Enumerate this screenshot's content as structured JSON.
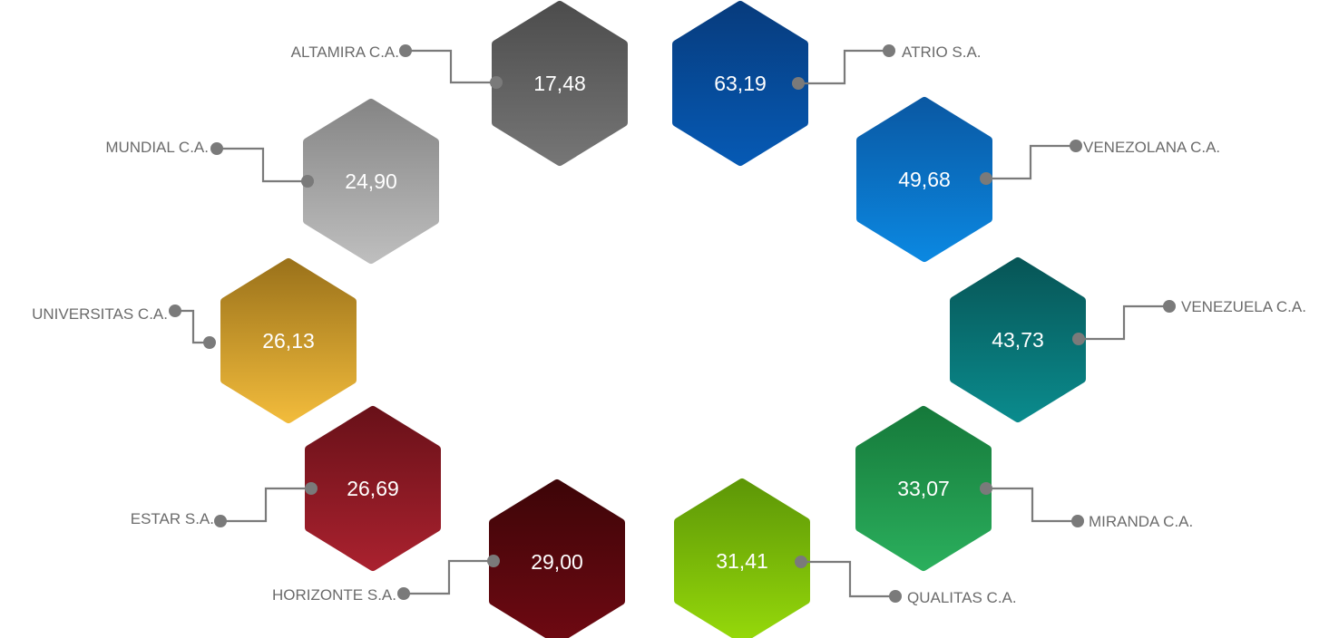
{
  "items": [
    {
      "company": "ALTAMIRA C.A.",
      "value": "17,48",
      "color_top": "#4d4d4d",
      "color_bottom": "#757575"
    },
    {
      "company": "MUNDIAL C.A.",
      "value": "24,90",
      "color_top": "#868686",
      "color_bottom": "#bdbdbd"
    },
    {
      "company": "UNIVERSITAS C.A.",
      "value": "26,13",
      "color_top": "#9c731b",
      "color_bottom": "#f0ba3b"
    },
    {
      "company": "ESTAR S.A.",
      "value": "26,69",
      "color_top": "#6a1119",
      "color_bottom": "#a8212e"
    },
    {
      "company": "HORIZONTE S.A.",
      "value": "29,00",
      "color_top": "#3e0508",
      "color_bottom": "#6e0912"
    },
    {
      "company": "ATRIO S.A.",
      "value": "63,19",
      "color_top": "#073c7e",
      "color_bottom": "#0659b3"
    },
    {
      "company": "VENEZOLANA C.A.",
      "value": "49,68",
      "color_top": "#0a59a4",
      "color_bottom": "#0b87e0"
    },
    {
      "company": "VENEZUELA C.A.",
      "value": "43,73",
      "color_top": "#075657",
      "color_bottom": "#0a8a8c"
    },
    {
      "company": "MIRANDA C.A.",
      "value": "33,07",
      "color_top": "#167a3b",
      "color_bottom": "#2aae5c"
    },
    {
      "company": "QUALITAS C.A.",
      "value": "31,41",
      "color_top": "#5e9807",
      "color_bottom": "#95d80a"
    }
  ]
}
